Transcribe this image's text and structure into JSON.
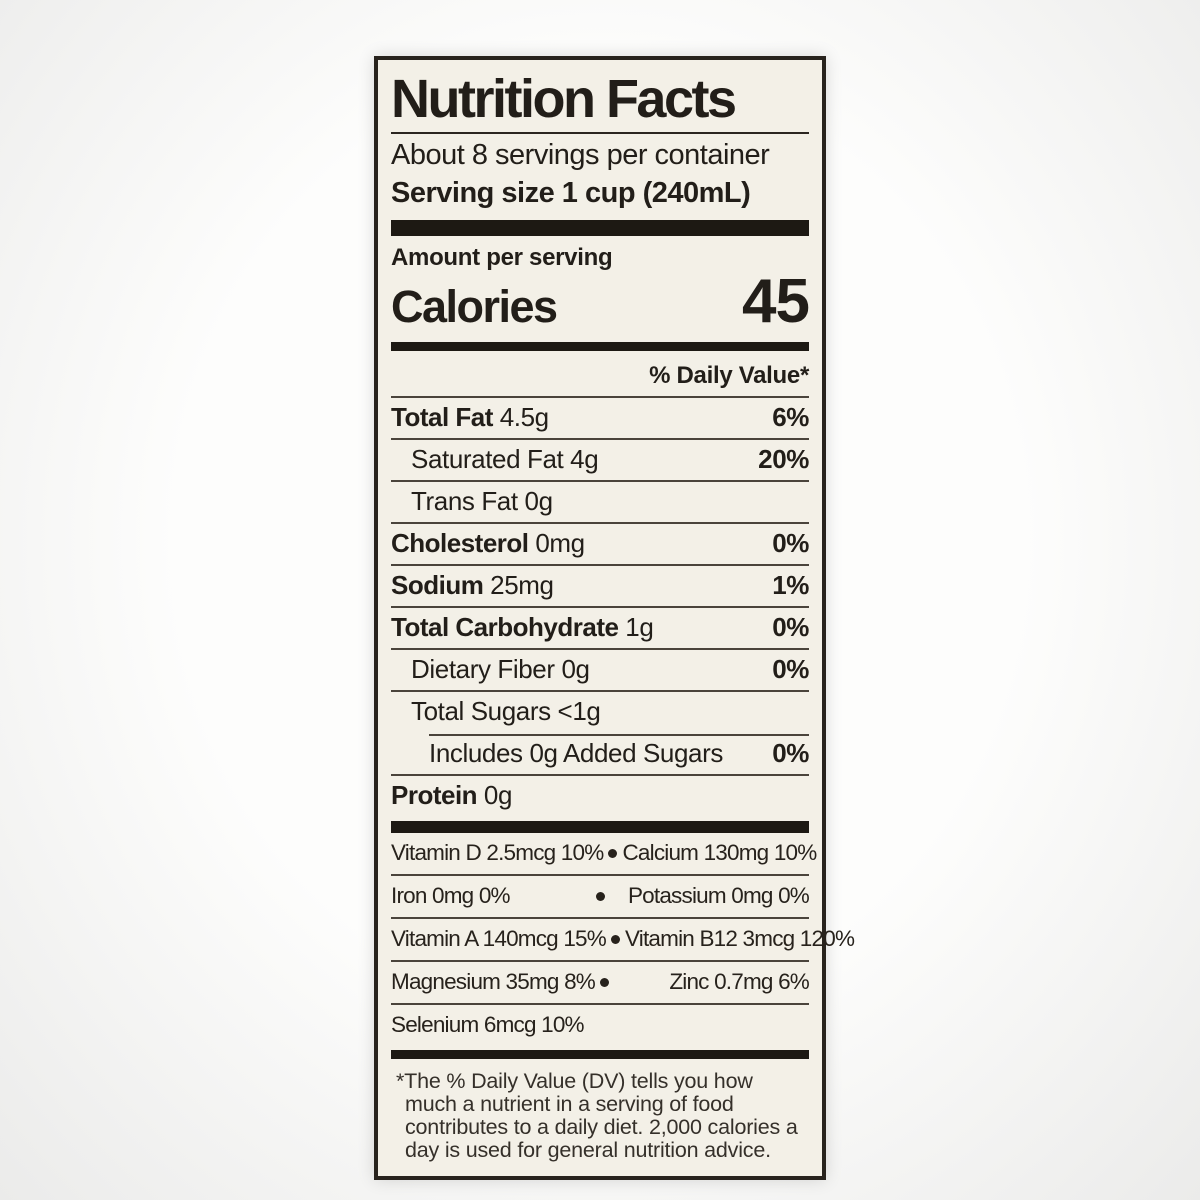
{
  "label": {
    "title": "Nutrition Facts",
    "servings_per_container": "About 8 servings per container",
    "serving_size": "Serving size 1 cup (240mL)",
    "amount_per_serving": "Amount per serving",
    "calories_label": "Calories",
    "calories_value": "45",
    "daily_value_header": "% Daily Value*",
    "nutrients": [
      {
        "name": "Total Fat",
        "amount": "4.5g",
        "dv": "6%",
        "bold": true,
        "indent": 0,
        "sep": "full"
      },
      {
        "name": "Saturated Fat",
        "amount": "4g",
        "dv": "20%",
        "bold": false,
        "indent": 1,
        "sep": "full"
      },
      {
        "name": "Trans Fat",
        "amount": "0g",
        "dv": "",
        "bold": false,
        "indent": 1,
        "sep": "full"
      },
      {
        "name": "Cholesterol",
        "amount": "0mg",
        "dv": "0%",
        "bold": true,
        "indent": 0,
        "sep": "full"
      },
      {
        "name": "Sodium",
        "amount": "25mg",
        "dv": "1%",
        "bold": true,
        "indent": 0,
        "sep": "full"
      },
      {
        "name": "Total Carbohydrate",
        "amount": "1g",
        "dv": "0%",
        "bold": true,
        "indent": 0,
        "sep": "full"
      },
      {
        "name": "Dietary Fiber",
        "amount": "0g",
        "dv": "0%",
        "bold": false,
        "indent": 1,
        "sep": "full"
      },
      {
        "name": "Total Sugars",
        "amount": "<1g",
        "dv": "",
        "bold": false,
        "indent": 1,
        "sep": "full"
      },
      {
        "name": "Includes 0g Added Sugars",
        "amount": "",
        "dv": "0%",
        "bold": false,
        "indent": 2,
        "sep": "indent"
      },
      {
        "name": "Protein",
        "amount": "0g",
        "dv": "",
        "bold": true,
        "indent": 0,
        "sep": "full"
      }
    ],
    "vitamins": [
      {
        "left": "Vitamin D 2.5mcg 10%",
        "right": "Calcium 130mg 10%"
      },
      {
        "left": "Iron 0mg 0%",
        "right": "Potassium 0mg 0%"
      },
      {
        "left": "Vitamin A 140mcg 15%",
        "right": "Vitamin B12 3mcg 120%"
      },
      {
        "left": "Magnesium 35mg 8%",
        "right": "Zinc 0.7mg 6%"
      },
      {
        "left": "Selenium 6mcg 10%",
        "right": ""
      }
    ],
    "footnote": "*The % Daily Value (DV) tells you how much a nutrient in a serving of food contributes to a daily diet. 2,000 calories a day is used for general nutrition advice.",
    "colors": {
      "paper": "#f3f0e7",
      "ink": "#221e19",
      "rule": "#4a443b",
      "bar": "#1d1913"
    }
  }
}
